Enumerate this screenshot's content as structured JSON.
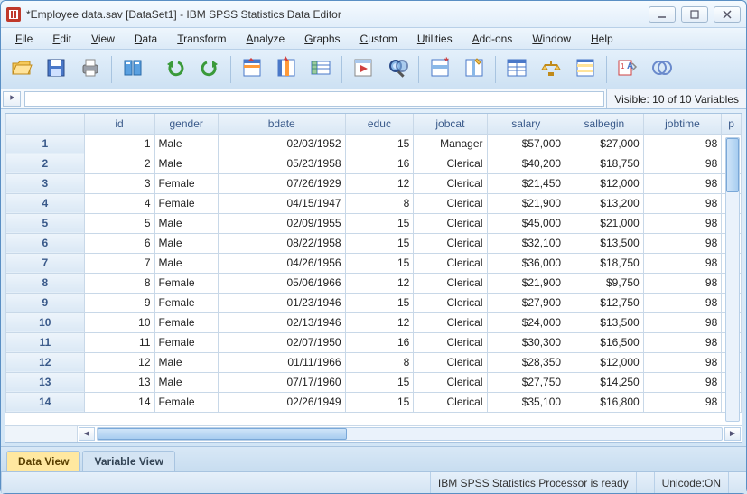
{
  "title": "*Employee data.sav [DataSet1] - IBM SPSS Statistics Data Editor",
  "menus": [
    "File",
    "Edit",
    "View",
    "Data",
    "Transform",
    "Analyze",
    "Graphs",
    "Custom",
    "Utilities",
    "Add-ons",
    "Window",
    "Help"
  ],
  "toolbar_icons": [
    "open",
    "save",
    "print",
    "|",
    "recall",
    "|",
    "undo",
    "redo",
    "|",
    "goto-case",
    "goto-var",
    "variables",
    "|",
    "run",
    "find",
    "|",
    "insert-case",
    "insert-var",
    "|",
    "split-file",
    "weight",
    "select-cases",
    "|",
    "value-labels",
    "use-sets"
  ],
  "visible_text": "Visible: 10 of 10 Variables",
  "columns": [
    "id",
    "gender",
    "bdate",
    "educ",
    "jobcat",
    "salary",
    "salbegin",
    "jobtime",
    "p"
  ],
  "rows": [
    {
      "n": "1",
      "id": "1",
      "gender": "Male",
      "bdate": "02/03/1952",
      "educ": "15",
      "jobcat": "Manager",
      "salary": "$57,000",
      "salbegin": "$27,000",
      "jobtime": "98"
    },
    {
      "n": "2",
      "id": "2",
      "gender": "Male",
      "bdate": "05/23/1958",
      "educ": "16",
      "jobcat": "Clerical",
      "salary": "$40,200",
      "salbegin": "$18,750",
      "jobtime": "98"
    },
    {
      "n": "3",
      "id": "3",
      "gender": "Female",
      "bdate": "07/26/1929",
      "educ": "12",
      "jobcat": "Clerical",
      "salary": "$21,450",
      "salbegin": "$12,000",
      "jobtime": "98"
    },
    {
      "n": "4",
      "id": "4",
      "gender": "Female",
      "bdate": "04/15/1947",
      "educ": "8",
      "jobcat": "Clerical",
      "salary": "$21,900",
      "salbegin": "$13,200",
      "jobtime": "98"
    },
    {
      "n": "5",
      "id": "5",
      "gender": "Male",
      "bdate": "02/09/1955",
      "educ": "15",
      "jobcat": "Clerical",
      "salary": "$45,000",
      "salbegin": "$21,000",
      "jobtime": "98"
    },
    {
      "n": "6",
      "id": "6",
      "gender": "Male",
      "bdate": "08/22/1958",
      "educ": "15",
      "jobcat": "Clerical",
      "salary": "$32,100",
      "salbegin": "$13,500",
      "jobtime": "98"
    },
    {
      "n": "7",
      "id": "7",
      "gender": "Male",
      "bdate": "04/26/1956",
      "educ": "15",
      "jobcat": "Clerical",
      "salary": "$36,000",
      "salbegin": "$18,750",
      "jobtime": "98"
    },
    {
      "n": "8",
      "id": "8",
      "gender": "Female",
      "bdate": "05/06/1966",
      "educ": "12",
      "jobcat": "Clerical",
      "salary": "$21,900",
      "salbegin": "$9,750",
      "jobtime": "98"
    },
    {
      "n": "9",
      "id": "9",
      "gender": "Female",
      "bdate": "01/23/1946",
      "educ": "15",
      "jobcat": "Clerical",
      "salary": "$27,900",
      "salbegin": "$12,750",
      "jobtime": "98"
    },
    {
      "n": "10",
      "id": "10",
      "gender": "Female",
      "bdate": "02/13/1946",
      "educ": "12",
      "jobcat": "Clerical",
      "salary": "$24,000",
      "salbegin": "$13,500",
      "jobtime": "98"
    },
    {
      "n": "11",
      "id": "11",
      "gender": "Female",
      "bdate": "02/07/1950",
      "educ": "16",
      "jobcat": "Clerical",
      "salary": "$30,300",
      "salbegin": "$16,500",
      "jobtime": "98"
    },
    {
      "n": "12",
      "id": "12",
      "gender": "Male",
      "bdate": "01/11/1966",
      "educ": "8",
      "jobcat": "Clerical",
      "salary": "$28,350",
      "salbegin": "$12,000",
      "jobtime": "98"
    },
    {
      "n": "13",
      "id": "13",
      "gender": "Male",
      "bdate": "07/17/1960",
      "educ": "15",
      "jobcat": "Clerical",
      "salary": "$27,750",
      "salbegin": "$14,250",
      "jobtime": "98"
    },
    {
      "n": "14",
      "id": "14",
      "gender": "Female",
      "bdate": "02/26/1949",
      "educ": "15",
      "jobcat": "Clerical",
      "salary": "$35,100",
      "salbegin": "$16,800",
      "jobtime": "98"
    }
  ],
  "tabs": {
    "data": "Data View",
    "variable": "Variable View"
  },
  "status": {
    "processor": "IBM SPSS Statistics Processor is ready",
    "unicode": "Unicode:ON"
  },
  "colors": {
    "window_border": "#5a8fc4",
    "header_bg_top": "#edf4fb",
    "header_bg_bot": "#dae8f5",
    "header_text": "#3a5a8a",
    "grid_line": "#c8d8e8",
    "active_tab": "#ffe8a0"
  }
}
